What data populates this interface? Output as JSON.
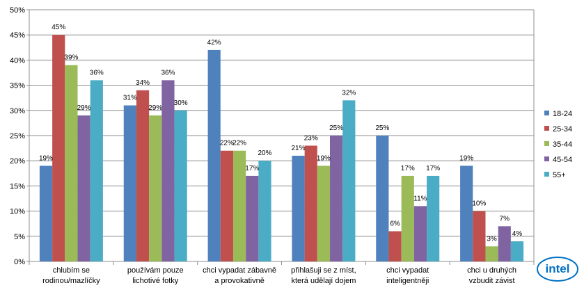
{
  "chart_data": {
    "type": "bar",
    "title": "",
    "xlabel": "",
    "ylabel": "",
    "ylim": [
      0,
      50
    ],
    "yticks": [
      "0%",
      "5%",
      "10%",
      "15%",
      "20%",
      "25%",
      "30%",
      "35%",
      "40%",
      "45%",
      "50%"
    ],
    "value_suffix": "%",
    "grid": true,
    "legend_position": "right",
    "categories": [
      [
        "chlubím se",
        "rodinou/mazlíčky"
      ],
      [
        "používám pouze",
        "lichotivé fotky"
      ],
      [
        "chci vypadat zábavně",
        "a provokativně"
      ],
      [
        "přihlašuji se z míst,",
        "která udělají dojem"
      ],
      [
        "chci vypadat",
        "inteligentněji"
      ],
      [
        "chci u druhých",
        "vzbudit závist"
      ]
    ],
    "series": [
      {
        "name": "18-24",
        "color": "#4F81BD",
        "values": [
          19,
          31,
          42,
          21,
          25,
          19
        ]
      },
      {
        "name": "25-34",
        "color": "#C0504D",
        "values": [
          45,
          34,
          22,
          23,
          6,
          10
        ]
      },
      {
        "name": "35-44",
        "color": "#9BBB59",
        "values": [
          39,
          29,
          22,
          19,
          17,
          3
        ]
      },
      {
        "name": "45-54",
        "color": "#8064A2",
        "values": [
          29,
          36,
          17,
          25,
          11,
          7
        ]
      },
      {
        "name": "55+",
        "color": "#4BACC6",
        "values": [
          36,
          30,
          20,
          32,
          17,
          4
        ]
      }
    ]
  },
  "logo": {
    "text": "intel",
    "color": "#0071C5"
  }
}
